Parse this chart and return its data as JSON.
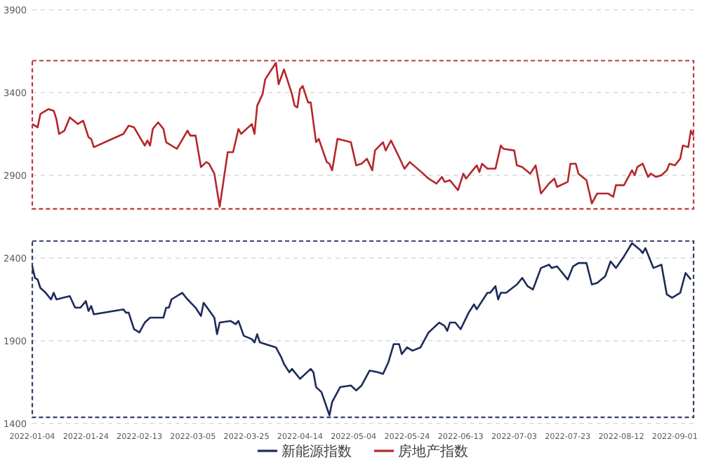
{
  "chart_data": {
    "type": "line",
    "legend": "bottom",
    "grid": "y",
    "marker": "none",
    "line_style": "solid",
    "xlim": [
      "2022-01-04",
      "2022-09-08"
    ],
    "xticks": [
      "2022-01-04",
      "2022-01-24",
      "2022-02-13",
      "2022-03-05",
      "2022-03-25",
      "2022-04-14",
      "2022-05-04",
      "2022-05-24",
      "2022-06-13",
      "2022-07-03",
      "2022-07-23",
      "2022-08-12",
      "2022-09-01"
    ],
    "ylim": [
      1400,
      3900
    ],
    "yticks": [
      1400,
      1900,
      2400,
      2900,
      3400,
      3900
    ],
    "series": [
      {
        "name": "新能源指数",
        "color": "#1c2b59",
        "x": [
          "2022-01-04",
          "2022-01-05",
          "2022-01-06",
          "2022-01-07",
          "2022-01-09",
          "2022-01-11",
          "2022-01-12",
          "2022-01-13",
          "2022-01-18",
          "2022-01-20",
          "2022-01-22",
          "2022-01-24",
          "2022-01-25",
          "2022-01-26",
          "2022-01-27",
          "2022-02-07",
          "2022-02-08",
          "2022-02-09",
          "2022-02-11",
          "2022-02-13",
          "2022-02-15",
          "2022-02-17",
          "2022-02-19",
          "2022-02-22",
          "2022-02-23",
          "2022-02-24",
          "2022-02-25",
          "2022-03-01",
          "2022-03-03",
          "2022-03-06",
          "2022-03-08",
          "2022-03-09",
          "2022-03-13",
          "2022-03-14",
          "2022-03-15",
          "2022-03-19",
          "2022-03-21",
          "2022-03-22",
          "2022-03-24",
          "2022-03-27",
          "2022-03-28",
          "2022-03-29",
          "2022-03-30",
          "2022-04-05",
          "2022-04-07",
          "2022-04-08",
          "2022-04-10",
          "2022-04-11",
          "2022-04-14",
          "2022-04-18",
          "2022-04-19",
          "2022-04-20",
          "2022-04-22",
          "2022-04-25",
          "2022-04-26",
          "2022-04-27",
          "2022-04-29",
          "2022-05-03",
          "2022-05-05",
          "2022-05-07",
          "2022-05-10",
          "2022-05-13",
          "2022-05-15",
          "2022-05-17",
          "2022-05-19",
          "2022-05-21",
          "2022-05-22",
          "2022-05-24",
          "2022-05-26",
          "2022-05-29",
          "2022-05-30",
          "2022-06-01",
          "2022-06-03",
          "2022-06-05",
          "2022-06-07",
          "2022-06-08",
          "2022-06-09",
          "2022-06-11",
          "2022-06-13",
          "2022-06-16",
          "2022-06-18",
          "2022-06-19",
          "2022-06-23",
          "2022-06-24",
          "2022-06-26",
          "2022-06-27",
          "2022-06-28",
          "2022-06-30",
          "2022-07-04",
          "2022-07-06",
          "2022-07-08",
          "2022-07-10",
          "2022-07-13",
          "2022-07-16",
          "2022-07-17",
          "2022-07-19",
          "2022-07-20",
          "2022-07-23",
          "2022-07-25",
          "2022-07-27",
          "2022-07-30",
          "2022-08-01",
          "2022-08-03",
          "2022-08-06",
          "2022-08-08",
          "2022-08-10",
          "2022-08-13",
          "2022-08-16",
          "2022-08-19",
          "2022-08-20",
          "2022-08-21",
          "2022-08-24",
          "2022-08-27",
          "2022-08-29",
          "2022-08-31",
          "2022-09-03",
          "2022-09-05",
          "2022-09-07"
        ],
        "values": [
          2350,
          2280,
          2270,
          2220,
          2190,
          2150,
          2190,
          2150,
          2170,
          2100,
          2100,
          2140,
          2080,
          2110,
          2060,
          2090,
          2070,
          2070,
          1970,
          1950,
          2010,
          2040,
          2040,
          2040,
          2100,
          2100,
          2150,
          2190,
          2150,
          2100,
          2050,
          2130,
          2040,
          1940,
          2010,
          2020,
          2000,
          2020,
          1930,
          1910,
          1890,
          1940,
          1890,
          1860,
          1800,
          1760,
          1710,
          1730,
          1670,
          1730,
          1710,
          1620,
          1590,
          1450,
          1530,
          1560,
          1620,
          1630,
          1600,
          1630,
          1720,
          1710,
          1700,
          1770,
          1880,
          1880,
          1820,
          1860,
          1840,
          1860,
          1890,
          1950,
          1980,
          2010,
          1990,
          1960,
          2010,
          2010,
          1970,
          2070,
          2120,
          2090,
          2190,
          2190,
          2230,
          2150,
          2190,
          2190,
          2240,
          2280,
          2230,
          2210,
          2340,
          2360,
          2340,
          2350,
          2330,
          2270,
          2350,
          2370,
          2370,
          2240,
          2250,
          2290,
          2380,
          2340,
          2410,
          2490,
          2450,
          2430,
          2460,
          2340,
          2360,
          2180,
          2160,
          2190,
          2310,
          2270
        ]
      },
      {
        "name": "房地产指数",
        "color": "#b5262b",
        "x": [
          "2022-01-04",
          "2022-01-06",
          "2022-01-07",
          "2022-01-10",
          "2022-01-12",
          "2022-01-13",
          "2022-01-14",
          "2022-01-16",
          "2022-01-18",
          "2022-01-21",
          "2022-01-23",
          "2022-01-25",
          "2022-01-26",
          "2022-01-27",
          "2022-02-07",
          "2022-02-09",
          "2022-02-11",
          "2022-02-15",
          "2022-02-16",
          "2022-02-17",
          "2022-02-18",
          "2022-02-20",
          "2022-02-22",
          "2022-02-23",
          "2022-02-27",
          "2022-03-03",
          "2022-03-04",
          "2022-03-06",
          "2022-03-08",
          "2022-03-10",
          "2022-03-11",
          "2022-03-13",
          "2022-03-15",
          "2022-03-18",
          "2022-03-20",
          "2022-03-22",
          "2022-03-23",
          "2022-03-27",
          "2022-03-28",
          "2022-03-29",
          "2022-03-31",
          "2022-04-01",
          "2022-04-05",
          "2022-04-06",
          "2022-04-08",
          "2022-04-11",
          "2022-04-12",
          "2022-04-13",
          "2022-04-14",
          "2022-04-15",
          "2022-04-17",
          "2022-04-18",
          "2022-04-20",
          "2022-04-21",
          "2022-04-24",
          "2022-04-25",
          "2022-04-26",
          "2022-04-28",
          "2022-05-03",
          "2022-05-05",
          "2022-05-07",
          "2022-05-09",
          "2022-05-11",
          "2022-05-12",
          "2022-05-15",
          "2022-05-16",
          "2022-05-18",
          "2022-05-21",
          "2022-05-23",
          "2022-05-25",
          "2022-05-30",
          "2022-06-01",
          "2022-06-04",
          "2022-06-06",
          "2022-06-07",
          "2022-06-09",
          "2022-06-12",
          "2022-06-14",
          "2022-06-15",
          "2022-06-19",
          "2022-06-20",
          "2022-06-21",
          "2022-06-23",
          "2022-06-26",
          "2022-06-28",
          "2022-06-29",
          "2022-07-03",
          "2022-07-04",
          "2022-07-06",
          "2022-07-09",
          "2022-07-11",
          "2022-07-13",
          "2022-07-16",
          "2022-07-18",
          "2022-07-19",
          "2022-07-23",
          "2022-07-24",
          "2022-07-26",
          "2022-07-27",
          "2022-07-30",
          "2022-08-01",
          "2022-08-03",
          "2022-08-07",
          "2022-08-09",
          "2022-08-10",
          "2022-08-13",
          "2022-08-16",
          "2022-08-17",
          "2022-08-18",
          "2022-08-20",
          "2022-08-22",
          "2022-08-23",
          "2022-08-25",
          "2022-08-27",
          "2022-08-29",
          "2022-08-30",
          "2022-09-01",
          "2022-09-03",
          "2022-09-04",
          "2022-09-06",
          "2022-09-07",
          "2022-09-08"
        ],
        "values": [
          3210,
          3190,
          3270,
          3300,
          3290,
          3240,
          3150,
          3170,
          3250,
          3210,
          3230,
          3130,
          3120,
          3070,
          3150,
          3200,
          3190,
          3080,
          3110,
          3080,
          3180,
          3220,
          3180,
          3100,
          3060,
          3170,
          3140,
          3140,
          2950,
          2980,
          2970,
          2910,
          2710,
          3040,
          3040,
          3180,
          3150,
          3210,
          3150,
          3320,
          3390,
          3480,
          3580,
          3450,
          3540,
          3390,
          3320,
          3310,
          3420,
          3440,
          3340,
          3340,
          3100,
          3120,
          2980,
          2970,
          2930,
          3120,
          3100,
          2960,
          2970,
          3000,
          2930,
          3050,
          3100,
          3050,
          3110,
          3010,
          2940,
          2980,
          2910,
          2880,
          2850,
          2890,
          2860,
          2870,
          2810,
          2910,
          2880,
          2960,
          2920,
          2970,
          2940,
          2940,
          3080,
          3060,
          3050,
          2960,
          2950,
          2910,
          2960,
          2790,
          2850,
          2880,
          2830,
          2860,
          2970,
          2970,
          2910,
          2870,
          2730,
          2790,
          2790,
          2770,
          2840,
          2840,
          2930,
          2900,
          2950,
          2970,
          2890,
          2910,
          2890,
          2900,
          2930,
          2970,
          2960,
          3000,
          3080,
          3070,
          3170,
          3140
        ]
      }
    ]
  }
}
